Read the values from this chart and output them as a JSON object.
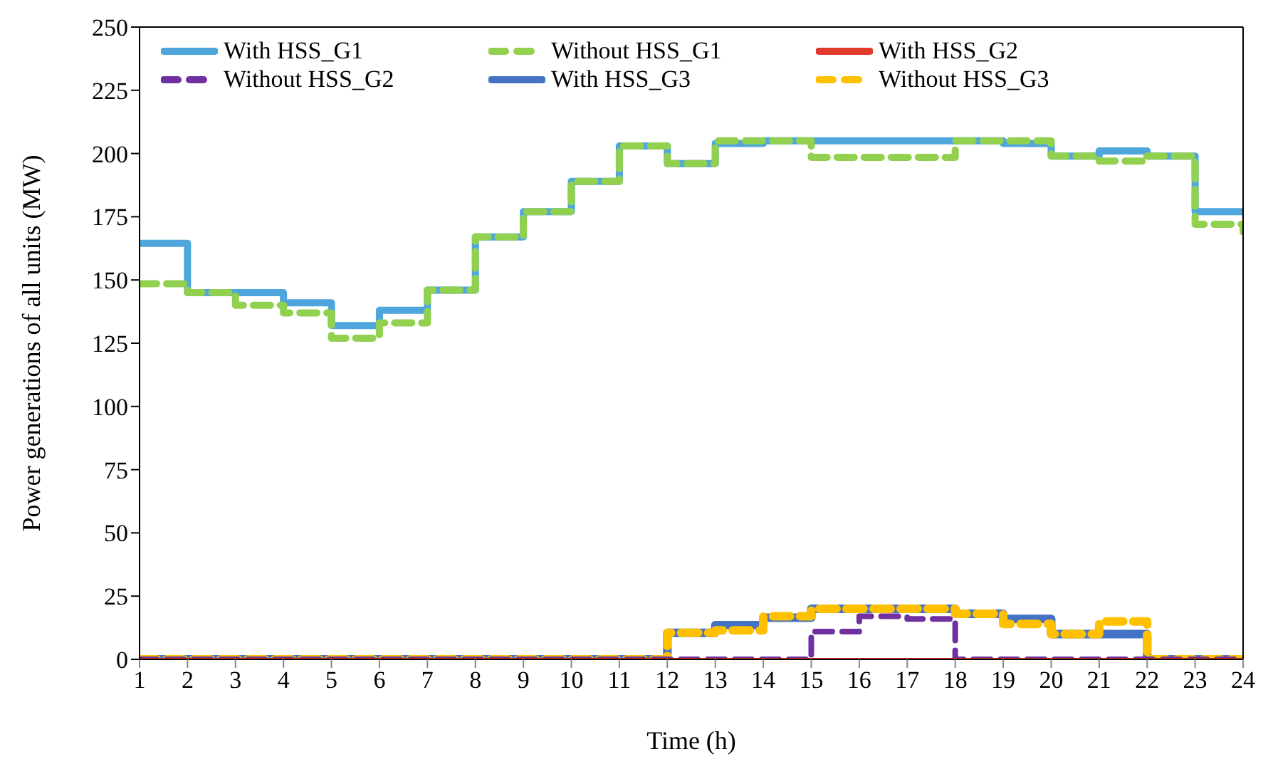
{
  "chart_data": {
    "type": "step",
    "xlabel": "Time (h)",
    "ylabel": "Power generations of all units (MW)",
    "x": [
      1,
      2,
      3,
      4,
      5,
      6,
      7,
      8,
      9,
      10,
      11,
      12,
      13,
      14,
      15,
      16,
      17,
      18,
      19,
      20,
      21,
      22,
      23,
      24
    ],
    "xlim": [
      1,
      24
    ],
    "xticks": [
      1,
      2,
      3,
      4,
      5,
      6,
      7,
      8,
      9,
      10,
      11,
      12,
      13,
      14,
      15,
      16,
      17,
      18,
      19,
      20,
      21,
      22,
      23,
      24
    ],
    "ylim": [
      0,
      250
    ],
    "yticks": [
      0,
      25,
      50,
      75,
      100,
      125,
      150,
      175,
      200,
      225,
      250
    ],
    "grid": false,
    "legend": "top",
    "marker": "none",
    "series": [
      {
        "name": "With HSS_G1",
        "color": "#4ea6dc",
        "line_style": "solid",
        "values": [
          164.5,
          145,
          145,
          141,
          132,
          138,
          146,
          167,
          177,
          189,
          203,
          196,
          204,
          205,
          205,
          205,
          205,
          205,
          204,
          199,
          201,
          199,
          177,
          177
        ]
      },
      {
        "name": "Without HSS_G1",
        "color": "#92d050",
        "line_style": "dashed",
        "values": [
          148.5,
          145,
          140,
          137,
          127,
          133,
          146,
          167,
          177,
          189,
          203,
          196,
          205,
          205,
          198.5,
          198.5,
          198.5,
          205,
          205,
          199,
          197,
          199,
          172,
          169
        ]
      },
      {
        "name": "With HSS_G2",
        "color": "#e03a2c",
        "line_style": "solid",
        "values": [
          0,
          0,
          0,
          0,
          0,
          0,
          0,
          0,
          0,
          0,
          0,
          0,
          0,
          0,
          0,
          0,
          0,
          0,
          0,
          0,
          0,
          0,
          0,
          0
        ]
      },
      {
        "name": "Without HSS_G2",
        "color": "#7030a0",
        "line_style": "dashed",
        "values": [
          0,
          0,
          0,
          0,
          0,
          0,
          0,
          0,
          0,
          0,
          0,
          0,
          0,
          0,
          11,
          17,
          16,
          0,
          0,
          0,
          0,
          0,
          0,
          0
        ]
      },
      {
        "name": "With HSS_G3",
        "color": "#4472c4",
        "line_style": "solid",
        "values": [
          0,
          0,
          0,
          0,
          0,
          0,
          0,
          0,
          0,
          0,
          0,
          10.5,
          13.5,
          16.5,
          20,
          20,
          20,
          18,
          16,
          10,
          10,
          0,
          0,
          0
        ]
      },
      {
        "name": "Without HSS_G3",
        "color": "#ffc000",
        "line_style": "dashed",
        "values": [
          0,
          0,
          0,
          0,
          0,
          0,
          0,
          0,
          0,
          0,
          0,
          10.5,
          11.5,
          17,
          20,
          20,
          20,
          18,
          14,
          10,
          15,
          0,
          0,
          0
        ]
      }
    ]
  }
}
